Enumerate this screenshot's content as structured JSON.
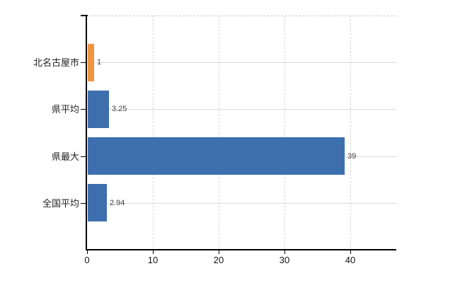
{
  "chart_data": {
    "type": "bar",
    "orientation": "horizontal",
    "title": "",
    "categories": [
      "北名古屋市",
      "県平均",
      "県最大",
      "全国平均"
    ],
    "values": [
      1,
      3.25,
      39,
      2.94
    ],
    "value_labels": [
      "1",
      "3.25",
      "39",
      "2.94"
    ],
    "bar_colors": [
      "#f0953e",
      "#3d6fae",
      "#3d6fae",
      "#3d6fae"
    ],
    "highlight_color": "#f0953e",
    "series_color": "#3d6fae",
    "x_ticks": [
      0,
      10,
      20,
      30,
      40
    ],
    "x_tick_labels": [
      "0",
      "10",
      "20",
      "30",
      "40"
    ],
    "xlim": [
      0,
      47
    ],
    "grid": true,
    "legend": false,
    "background": "#ffffff",
    "gridline_color_horizontal": "#d6dcd6",
    "gridline_color_vertical": "#d2d6d2",
    "axis_color": "#000000"
  }
}
